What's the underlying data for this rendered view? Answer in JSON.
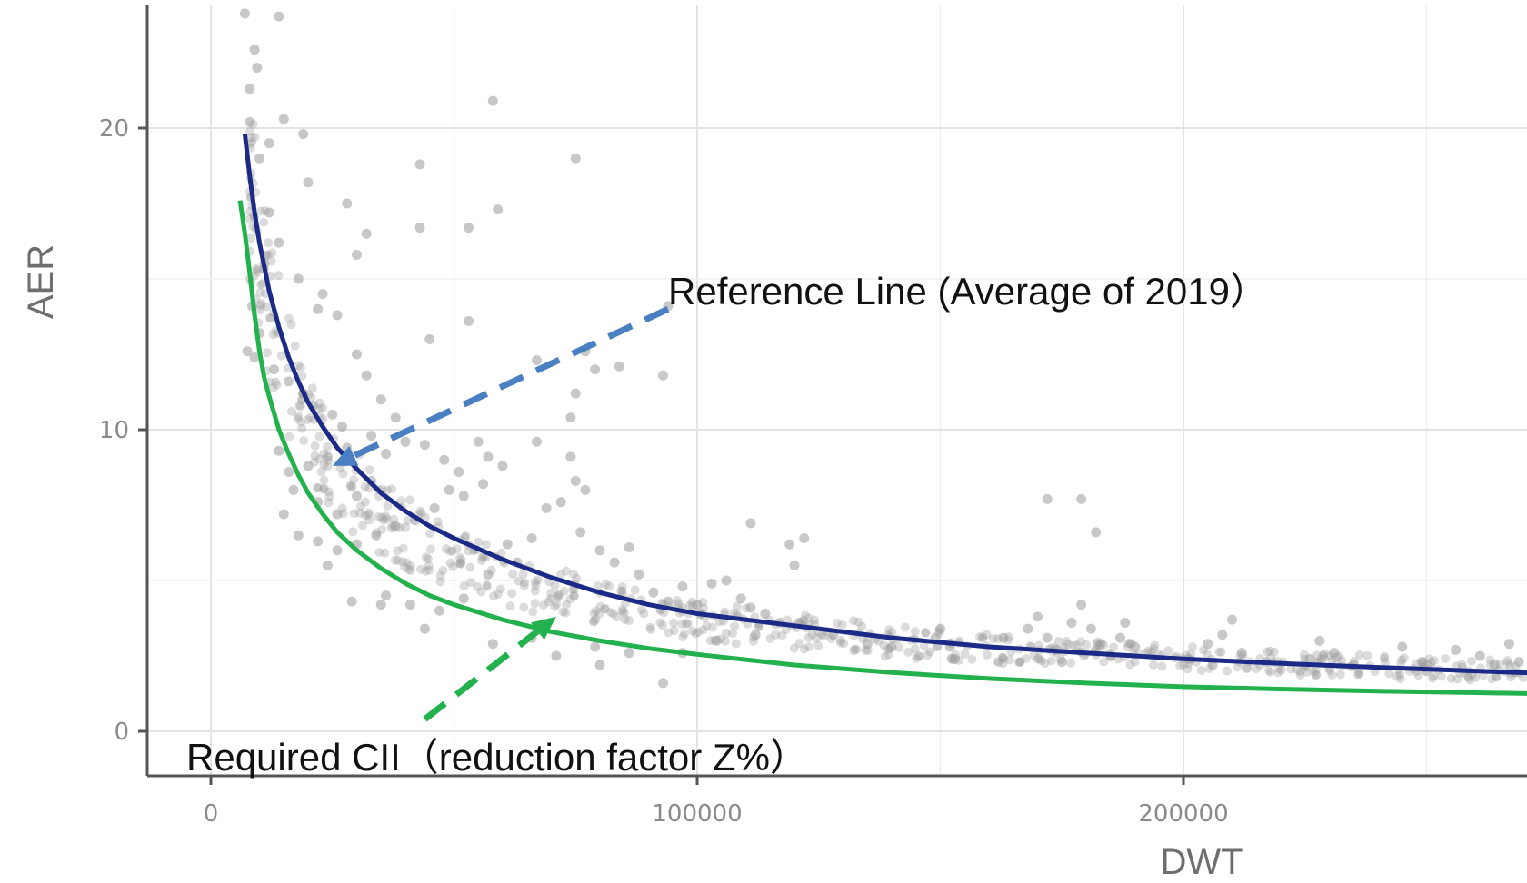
{
  "chart_data": {
    "type": "scatter",
    "xlabel": "DWT",
    "ylabel": "AER",
    "xlim": [
      -12000,
      272000
    ],
    "ylim": [
      -1.5,
      24
    ],
    "x_ticks": [
      0,
      100000,
      200000
    ],
    "x_tick_labels": [
      "0",
      "100000",
      "200000"
    ],
    "y_ticks": [
      0,
      10,
      20
    ],
    "y_tick_labels": [
      "0",
      "10",
      "20"
    ],
    "grid": true,
    "series": [
      {
        "name": "",
        "kind": "scatter",
        "color": "#9a9a9a",
        "points": [
          [
            7000,
            23.8
          ],
          [
            9000,
            22.6
          ],
          [
            9500,
            22.0
          ],
          [
            8000,
            21.3
          ],
          [
            14000,
            23.7
          ],
          [
            8000,
            20.2
          ],
          [
            12000,
            19.5
          ],
          [
            15000,
            20.3
          ],
          [
            19000,
            19.8
          ],
          [
            10000,
            19.0
          ],
          [
            20000,
            18.2
          ],
          [
            28000,
            17.5
          ],
          [
            43000,
            18.8
          ],
          [
            58000,
            20.9
          ],
          [
            75000,
            19.0
          ],
          [
            59000,
            17.3
          ],
          [
            53000,
            16.7
          ],
          [
            43000,
            16.7
          ],
          [
            32000,
            16.5
          ],
          [
            30000,
            15.8
          ],
          [
            12000,
            17.2
          ],
          [
            14000,
            16.2
          ],
          [
            11000,
            15.5
          ],
          [
            18000,
            15.0
          ],
          [
            23000,
            14.5
          ],
          [
            26000,
            13.8
          ],
          [
            22000,
            14.0
          ],
          [
            8500,
            14.1
          ],
          [
            10000,
            13.2
          ],
          [
            7500,
            12.6
          ],
          [
            9000,
            12.4
          ],
          [
            13000,
            12.0
          ],
          [
            16000,
            11.6
          ],
          [
            19000,
            11.2
          ],
          [
            21000,
            10.8
          ],
          [
            25000,
            10.5
          ],
          [
            27000,
            10.1
          ],
          [
            30000,
            12.5
          ],
          [
            32000,
            11.8
          ],
          [
            35000,
            11.0
          ],
          [
            38000,
            10.4
          ],
          [
            45000,
            13.0
          ],
          [
            53000,
            13.6
          ],
          [
            40000,
            9.6
          ],
          [
            36000,
            9.2
          ],
          [
            33000,
            9.8
          ],
          [
            28000,
            9.4
          ],
          [
            24000,
            9.1
          ],
          [
            20000,
            8.8
          ],
          [
            16000,
            8.6
          ],
          [
            14000,
            9.3
          ],
          [
            17000,
            8.0
          ],
          [
            22000,
            7.6
          ],
          [
            26000,
            7.2
          ],
          [
            30000,
            7.8
          ],
          [
            33000,
            8.3
          ],
          [
            44000,
            9.5
          ],
          [
            48000,
            9.0
          ],
          [
            51000,
            8.6
          ],
          [
            55000,
            9.6
          ],
          [
            57000,
            9.1
          ],
          [
            60000,
            8.8
          ],
          [
            56000,
            8.2
          ],
          [
            52000,
            7.8
          ],
          [
            49000,
            8.0
          ],
          [
            46000,
            7.4
          ],
          [
            42000,
            7.0
          ],
          [
            38000,
            6.8
          ],
          [
            34000,
            6.5
          ],
          [
            30000,
            6.2
          ],
          [
            26000,
            6.0
          ],
          [
            22000,
            6.3
          ],
          [
            18000,
            6.5
          ],
          [
            15000,
            7.2
          ],
          [
            24000,
            5.5
          ],
          [
            29000,
            4.3
          ],
          [
            36000,
            4.5
          ],
          [
            41000,
            4.2
          ],
          [
            47000,
            4.0
          ],
          [
            52000,
            4.4
          ],
          [
            57000,
            5.2
          ],
          [
            61000,
            6.2
          ],
          [
            63000,
            5.6
          ],
          [
            66000,
            6.4
          ],
          [
            69000,
            7.4
          ],
          [
            72000,
            7.6
          ],
          [
            75000,
            8.3
          ],
          [
            77000,
            8.0
          ],
          [
            74000,
            9.1
          ],
          [
            74000,
            10.4
          ],
          [
            75000,
            11.2
          ],
          [
            79000,
            12.0
          ],
          [
            77000,
            12.6
          ],
          [
            67000,
            12.3
          ],
          [
            67000,
            9.6
          ],
          [
            76000,
            6.6
          ],
          [
            80000,
            6.0
          ],
          [
            83000,
            5.6
          ],
          [
            86000,
            6.1
          ],
          [
            88000,
            5.2
          ],
          [
            91000,
            4.6
          ],
          [
            94000,
            4.3
          ],
          [
            97000,
            4.8
          ],
          [
            100000,
            4.2
          ],
          [
            103000,
            4.9
          ],
          [
            106000,
            5.0
          ],
          [
            109000,
            4.4
          ],
          [
            111000,
            4.1
          ],
          [
            114000,
            3.9
          ],
          [
            117000,
            3.6
          ],
          [
            111000,
            6.9
          ],
          [
            119000,
            6.2
          ],
          [
            122000,
            6.4
          ],
          [
            120000,
            5.5
          ],
          [
            84000,
            12.1
          ],
          [
            93000,
            11.8
          ],
          [
            94000,
            14.1
          ],
          [
            66000,
            3.1
          ],
          [
            58000,
            2.9
          ],
          [
            44000,
            3.4
          ],
          [
            35000,
            4.2
          ],
          [
            71000,
            2.5
          ],
          [
            79000,
            2.8
          ],
          [
            80000,
            2.2
          ],
          [
            86000,
            2.6
          ],
          [
            93000,
            1.6
          ],
          [
            97000,
            2.6
          ],
          [
            104000,
            3.0
          ],
          [
            112000,
            3.2
          ],
          [
            121000,
            3.6
          ],
          [
            128000,
            3.2
          ],
          [
            135000,
            2.9
          ],
          [
            140000,
            2.8
          ],
          [
            149000,
            3.1
          ],
          [
            150000,
            3.4
          ],
          [
            152000,
            2.8
          ],
          [
            153000,
            2.4
          ],
          [
            163000,
            3.1
          ],
          [
            168000,
            3.4
          ],
          [
            170000,
            3.8
          ],
          [
            172000,
            3.1
          ],
          [
            174000,
            2.7
          ],
          [
            175000,
            2.3
          ],
          [
            177000,
            3.6
          ],
          [
            179000,
            4.2
          ],
          [
            181000,
            3.4
          ],
          [
            183000,
            2.9
          ],
          [
            185000,
            2.5
          ],
          [
            187000,
            3.1
          ],
          [
            188000,
            3.6
          ],
          [
            190000,
            2.8
          ],
          [
            172000,
            7.7
          ],
          [
            179000,
            7.7
          ],
          [
            182000,
            6.6
          ],
          [
            201000,
            2.4
          ],
          [
            205000,
            2.9
          ],
          [
            206000,
            2.2
          ],
          [
            208000,
            3.2
          ],
          [
            210000,
            3.7
          ],
          [
            212000,
            2.6
          ],
          [
            213000,
            2.1
          ],
          [
            217000,
            2.3
          ],
          [
            226000,
            2.4
          ],
          [
            228000,
            3.0
          ],
          [
            231000,
            2.6
          ],
          [
            235000,
            2.2
          ],
          [
            245000,
            2.8
          ],
          [
            249000,
            2.3
          ],
          [
            250000,
            2.0
          ],
          [
            256000,
            2.7
          ],
          [
            261000,
            2.5
          ],
          [
            264000,
            2.2
          ],
          [
            267000,
            2.9
          ],
          [
            269000,
            2.3
          ]
        ]
      },
      {
        "name": "Reference Line (Average of 2019）",
        "kind": "line",
        "color": "#1b2a86",
        "points": [
          [
            7000,
            19.8
          ],
          [
            8000,
            18.4
          ],
          [
            9000,
            17.2
          ],
          [
            10000,
            16.2
          ],
          [
            12000,
            14.6
          ],
          [
            14000,
            13.4
          ],
          [
            16000,
            12.4
          ],
          [
            18000,
            11.6
          ],
          [
            20000,
            10.9
          ],
          [
            23000,
            10.1
          ],
          [
            26000,
            9.4
          ],
          [
            30000,
            8.7
          ],
          [
            35000,
            7.9
          ],
          [
            40000,
            7.3
          ],
          [
            45000,
            6.8
          ],
          [
            50000,
            6.4
          ],
          [
            60000,
            5.7
          ],
          [
            70000,
            5.1
          ],
          [
            80000,
            4.6
          ],
          [
            90000,
            4.2
          ],
          [
            100000,
            3.9
          ],
          [
            120000,
            3.5
          ],
          [
            140000,
            3.1
          ],
          [
            160000,
            2.8
          ],
          [
            180000,
            2.6
          ],
          [
            200000,
            2.4
          ],
          [
            220000,
            2.25
          ],
          [
            240000,
            2.12
          ],
          [
            260000,
            2.0
          ],
          [
            272000,
            1.93
          ]
        ]
      },
      {
        "name": "Required CII（reduction factor Z%）",
        "kind": "line",
        "color": "#22b14c",
        "points": [
          [
            6000,
            17.6
          ],
          [
            7000,
            16.5
          ],
          [
            8000,
            15.2
          ],
          [
            9000,
            13.8
          ],
          [
            10000,
            12.6
          ],
          [
            11000,
            11.7
          ],
          [
            12000,
            11.1
          ],
          [
            14000,
            10.0
          ],
          [
            16000,
            9.2
          ],
          [
            18000,
            8.5
          ],
          [
            20000,
            7.9
          ],
          [
            23000,
            7.2
          ],
          [
            26000,
            6.6
          ],
          [
            30000,
            6.0
          ],
          [
            35000,
            5.4
          ],
          [
            40000,
            4.9
          ],
          [
            45000,
            4.5
          ],
          [
            50000,
            4.2
          ],
          [
            60000,
            3.7
          ],
          [
            70000,
            3.3
          ],
          [
            80000,
            3.0
          ],
          [
            90000,
            2.75
          ],
          [
            100000,
            2.55
          ],
          [
            120000,
            2.2
          ],
          [
            140000,
            1.95
          ],
          [
            160000,
            1.75
          ],
          [
            180000,
            1.6
          ],
          [
            200000,
            1.48
          ],
          [
            220000,
            1.4
          ],
          [
            240000,
            1.33
          ],
          [
            260000,
            1.28
          ],
          [
            272000,
            1.25
          ]
        ]
      }
    ],
    "annotations": [
      {
        "text": "Reference Line (Average of 2019）",
        "color": "#4a7fc1",
        "arrow_from": [
          94000,
          14.0
        ],
        "arrow_to": [
          25000,
          8.8
        ]
      },
      {
        "text": "Required CII（reduction factor Z%）",
        "color": "#22b14c",
        "arrow_from": [
          44000,
          0.4
        ],
        "arrow_to": [
          71000,
          3.8
        ]
      }
    ]
  }
}
